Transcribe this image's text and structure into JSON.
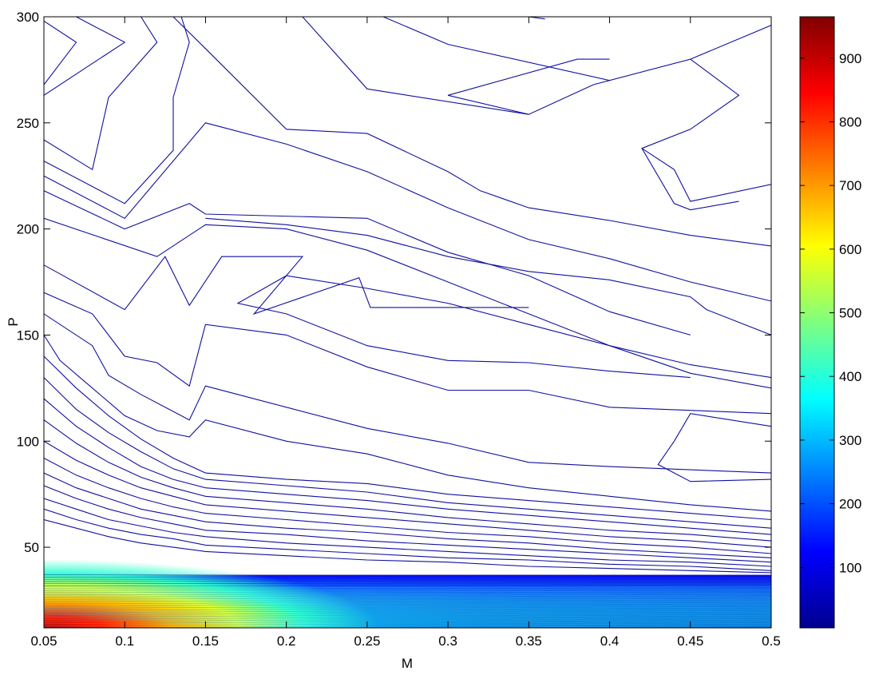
{
  "chart_data": {
    "type": "contour",
    "xlabel": "M",
    "ylabel": "P",
    "xlim": [
      0.05,
      0.5
    ],
    "ylim": [
      12,
      300
    ],
    "xticks": [
      "0.05",
      "0.1",
      "0.15",
      "0.2",
      "0.25",
      "0.3",
      "0.35",
      "0.4",
      "0.45",
      "0.5"
    ],
    "yticks": [
      "50",
      "100",
      "150",
      "200",
      "250",
      "300"
    ],
    "colorbar": {
      "colormap": "jet",
      "range": [
        5,
        965
      ],
      "ticks": [
        "100",
        "200",
        "300",
        "400",
        "500",
        "600",
        "700",
        "800",
        "900"
      ]
    },
    "contour_lines": [
      {
        "points": [
          [
            0.05,
            268
          ],
          [
            0.07,
            288
          ],
          [
            0.05,
            298
          ]
        ]
      },
      {
        "points": [
          [
            0.05,
            263
          ],
          [
            0.1,
            288
          ],
          [
            0.07,
            300
          ]
        ]
      },
      {
        "points": [
          [
            0.05,
            242
          ],
          [
            0.08,
            228
          ],
          [
            0.09,
            262
          ],
          [
            0.12,
            288
          ],
          [
            0.11,
            300
          ]
        ]
      },
      {
        "points": [
          [
            0.05,
            232
          ],
          [
            0.1,
            212
          ],
          [
            0.13,
            237
          ],
          [
            0.13,
            262
          ],
          [
            0.14,
            288
          ],
          [
            0.135,
            300
          ]
        ]
      },
      {
        "points": [
          [
            0.05,
            225
          ],
          [
            0.1,
            205
          ],
          [
            0.15,
            250
          ],
          [
            0.2,
            240
          ],
          [
            0.25,
            227
          ],
          [
            0.3,
            210
          ],
          [
            0.35,
            195
          ],
          [
            0.4,
            186
          ],
          [
            0.45,
            175
          ],
          [
            0.5,
            166
          ]
        ]
      },
      {
        "points": [
          [
            0.05,
            218
          ],
          [
            0.1,
            200
          ],
          [
            0.14,
            212
          ],
          [
            0.15,
            207
          ],
          [
            0.25,
            205
          ],
          [
            0.3,
            189
          ],
          [
            0.35,
            178
          ],
          [
            0.4,
            161
          ],
          [
            0.45,
            150
          ]
        ]
      },
      {
        "points": [
          [
            0.05,
            205
          ],
          [
            0.12,
            187
          ],
          [
            0.15,
            202
          ],
          [
            0.2,
            200
          ],
          [
            0.25,
            190
          ],
          [
            0.3,
            175
          ],
          [
            0.35,
            160
          ],
          [
            0.4,
            145
          ],
          [
            0.45,
            132
          ],
          [
            0.5,
            125
          ]
        ]
      },
      {
        "points": [
          [
            0.05,
            183
          ],
          [
            0.1,
            162
          ],
          [
            0.125,
            187
          ],
          [
            0.14,
            164
          ],
          [
            0.16,
            187
          ],
          [
            0.21,
            187
          ],
          [
            0.18,
            160
          ],
          [
            0.245,
            177
          ],
          [
            0.252,
            163
          ],
          [
            0.35,
            163
          ]
        ]
      },
      {
        "points": [
          [
            0.05,
            170
          ],
          [
            0.08,
            160
          ],
          [
            0.1,
            140
          ],
          [
            0.12,
            137
          ],
          [
            0.14,
            126
          ],
          [
            0.15,
            155
          ],
          [
            0.2,
            150
          ],
          [
            0.25,
            135
          ],
          [
            0.3,
            124
          ],
          [
            0.35,
            124
          ],
          [
            0.4,
            116
          ],
          [
            0.5,
            113
          ]
        ]
      },
      {
        "points": [
          [
            0.05,
            160
          ],
          [
            0.08,
            145
          ],
          [
            0.09,
            131
          ],
          [
            0.11,
            122
          ],
          [
            0.14,
            110
          ],
          [
            0.15,
            126
          ],
          [
            0.2,
            116
          ],
          [
            0.25,
            106
          ],
          [
            0.3,
            99
          ],
          [
            0.35,
            90
          ],
          [
            0.4,
            88
          ],
          [
            0.5,
            85
          ]
        ]
      },
      {
        "points": [
          [
            0.05,
            150
          ],
          [
            0.06,
            138
          ],
          [
            0.08,
            125
          ],
          [
            0.1,
            112
          ],
          [
            0.12,
            105
          ],
          [
            0.14,
            102
          ],
          [
            0.15,
            110
          ],
          [
            0.2,
            100
          ],
          [
            0.25,
            94
          ],
          [
            0.3,
            84
          ],
          [
            0.35,
            78
          ],
          [
            0.4,
            74
          ],
          [
            0.45,
            70
          ],
          [
            0.5,
            67
          ]
        ]
      },
      {
        "points": [
          [
            0.05,
            140
          ],
          [
            0.07,
            125
          ],
          [
            0.09,
            112
          ],
          [
            0.11,
            101
          ],
          [
            0.13,
            92
          ],
          [
            0.15,
            85
          ],
          [
            0.2,
            82
          ],
          [
            0.25,
            80
          ],
          [
            0.3,
            75
          ],
          [
            0.35,
            72
          ],
          [
            0.4,
            69
          ],
          [
            0.45,
            66
          ],
          [
            0.5,
            63
          ]
        ]
      },
      {
        "points": [
          [
            0.05,
            130
          ],
          [
            0.07,
            115
          ],
          [
            0.09,
            104
          ],
          [
            0.11,
            95
          ],
          [
            0.13,
            87
          ],
          [
            0.15,
            82
          ],
          [
            0.2,
            79
          ],
          [
            0.25,
            76
          ],
          [
            0.3,
            71
          ],
          [
            0.35,
            68
          ],
          [
            0.4,
            65
          ],
          [
            0.45,
            62
          ],
          [
            0.5,
            59
          ]
        ]
      },
      {
        "points": [
          [
            0.05,
            120
          ],
          [
            0.07,
            107
          ],
          [
            0.09,
            97
          ],
          [
            0.11,
            88
          ],
          [
            0.13,
            82
          ],
          [
            0.15,
            78
          ],
          [
            0.2,
            75
          ],
          [
            0.25,
            72
          ],
          [
            0.3,
            68
          ],
          [
            0.35,
            65
          ],
          [
            0.4,
            62
          ],
          [
            0.45,
            59
          ],
          [
            0.5,
            56
          ]
        ]
      },
      {
        "points": [
          [
            0.05,
            110
          ],
          [
            0.07,
            99
          ],
          [
            0.09,
            90
          ],
          [
            0.11,
            83
          ],
          [
            0.13,
            78
          ],
          [
            0.15,
            74
          ],
          [
            0.2,
            71
          ],
          [
            0.25,
            68
          ],
          [
            0.3,
            64
          ],
          [
            0.35,
            61
          ],
          [
            0.4,
            58
          ],
          [
            0.45,
            56
          ],
          [
            0.5,
            53
          ]
        ]
      },
      {
        "points": [
          [
            0.05,
            100
          ],
          [
            0.07,
            91
          ],
          [
            0.09,
            84
          ],
          [
            0.11,
            78
          ],
          [
            0.13,
            74
          ],
          [
            0.15,
            70
          ],
          [
            0.2,
            67
          ],
          [
            0.25,
            64
          ],
          [
            0.3,
            61
          ],
          [
            0.35,
            58
          ],
          [
            0.4,
            55
          ],
          [
            0.45,
            53
          ],
          [
            0.5,
            50
          ]
        ]
      },
      {
        "points": [
          [
            0.05,
            92
          ],
          [
            0.07,
            84
          ],
          [
            0.09,
            78
          ],
          [
            0.11,
            73
          ],
          [
            0.13,
            69
          ],
          [
            0.15,
            66
          ],
          [
            0.2,
            63
          ],
          [
            0.25,
            60
          ],
          [
            0.3,
            57
          ],
          [
            0.35,
            55
          ],
          [
            0.4,
            52
          ],
          [
            0.45,
            50
          ],
          [
            0.5,
            47
          ]
        ]
      },
      {
        "points": [
          [
            0.05,
            85
          ],
          [
            0.07,
            78
          ],
          [
            0.09,
            73
          ],
          [
            0.11,
            68
          ],
          [
            0.13,
            65
          ],
          [
            0.15,
            62
          ],
          [
            0.2,
            59
          ],
          [
            0.25,
            57
          ],
          [
            0.3,
            54
          ],
          [
            0.35,
            52
          ],
          [
            0.4,
            49
          ],
          [
            0.45,
            47
          ],
          [
            0.5,
            45
          ]
        ]
      },
      {
        "points": [
          [
            0.05,
            79
          ],
          [
            0.07,
            73
          ],
          [
            0.09,
            68
          ],
          [
            0.11,
            64
          ],
          [
            0.13,
            61
          ],
          [
            0.15,
            58
          ],
          [
            0.2,
            56
          ],
          [
            0.25,
            53
          ],
          [
            0.3,
            51
          ],
          [
            0.35,
            49
          ],
          [
            0.4,
            47
          ],
          [
            0.45,
            45
          ],
          [
            0.5,
            43
          ]
        ]
      },
      {
        "points": [
          [
            0.05,
            73
          ],
          [
            0.07,
            68
          ],
          [
            0.09,
            63
          ],
          [
            0.11,
            60
          ],
          [
            0.13,
            57
          ],
          [
            0.15,
            55
          ],
          [
            0.2,
            52
          ],
          [
            0.25,
            50
          ],
          [
            0.3,
            48
          ],
          [
            0.35,
            46
          ],
          [
            0.4,
            44
          ],
          [
            0.45,
            43
          ],
          [
            0.5,
            41
          ]
        ]
      },
      {
        "points": [
          [
            0.05,
            68
          ],
          [
            0.07,
            63
          ],
          [
            0.09,
            59
          ],
          [
            0.11,
            56
          ],
          [
            0.13,
            54
          ],
          [
            0.15,
            51
          ],
          [
            0.2,
            49
          ],
          [
            0.25,
            47
          ],
          [
            0.3,
            45
          ],
          [
            0.35,
            44
          ],
          [
            0.4,
            42
          ],
          [
            0.45,
            41
          ],
          [
            0.5,
            39
          ]
        ]
      },
      {
        "points": [
          [
            0.05,
            63
          ],
          [
            0.07,
            59
          ],
          [
            0.09,
            55
          ],
          [
            0.11,
            52
          ],
          [
            0.13,
            50
          ],
          [
            0.15,
            48
          ],
          [
            0.2,
            46
          ],
          [
            0.25,
            44
          ],
          [
            0.3,
            43
          ],
          [
            0.35,
            41
          ],
          [
            0.4,
            40
          ],
          [
            0.45,
            39
          ],
          [
            0.5,
            38
          ]
        ]
      },
      {
        "points": [
          [
            0.4,
            280
          ],
          [
            0.38,
            280
          ],
          [
            0.3,
            263
          ],
          [
            0.35,
            254
          ],
          [
            0.39,
            268
          ],
          [
            0.45,
            280
          ],
          [
            0.48,
            263
          ],
          [
            0.45,
            247
          ],
          [
            0.42,
            238
          ],
          [
            0.44,
            212
          ],
          [
            0.45,
            209
          ],
          [
            0.48,
            213
          ]
        ]
      },
      {
        "points": [
          [
            0.21,
            300
          ],
          [
            0.25,
            266
          ],
          [
            0.35,
            254
          ]
        ]
      },
      {
        "points": [
          [
            0.26,
            300
          ],
          [
            0.3,
            287
          ],
          [
            0.4,
            270
          ]
        ]
      },
      {
        "points": [
          [
            0.35,
            300
          ],
          [
            0.36,
            299
          ]
        ]
      },
      {
        "points": [
          [
            0.42,
            238
          ],
          [
            0.44,
            228
          ],
          [
            0.45,
            213
          ],
          [
            0.5,
            221
          ]
        ]
      },
      {
        "points": [
          [
            0.45,
            280
          ],
          [
            0.5,
            296
          ]
        ]
      },
      {
        "points": [
          [
            0.5,
            192
          ],
          [
            0.45,
            197
          ],
          [
            0.4,
            204
          ],
          [
            0.35,
            210
          ],
          [
            0.32,
            218
          ],
          [
            0.3,
            227
          ],
          [
            0.25,
            245
          ],
          [
            0.2,
            247
          ],
          [
            0.15,
            285
          ],
          [
            0.13,
            300
          ]
        ]
      },
      {
        "points": [
          [
            0.5,
            150
          ],
          [
            0.46,
            162
          ],
          [
            0.45,
            168
          ],
          [
            0.4,
            176
          ],
          [
            0.35,
            180
          ],
          [
            0.3,
            187
          ],
          [
            0.25,
            197
          ],
          [
            0.2,
            202
          ],
          [
            0.15,
            205
          ]
        ]
      },
      {
        "points": [
          [
            0.5,
            130
          ],
          [
            0.45,
            136
          ],
          [
            0.4,
            145
          ],
          [
            0.35,
            155
          ],
          [
            0.3,
            165
          ],
          [
            0.25,
            172
          ],
          [
            0.2,
            178
          ],
          [
            0.17,
            165
          ],
          [
            0.2,
            160
          ],
          [
            0.25,
            145
          ],
          [
            0.3,
            138
          ],
          [
            0.35,
            137
          ],
          [
            0.4,
            133
          ],
          [
            0.45,
            130
          ]
        ]
      },
      {
        "points": [
          [
            0.5,
            107
          ],
          [
            0.45,
            113
          ],
          [
            0.44,
            100
          ],
          [
            0.43,
            89
          ],
          [
            0.45,
            81
          ],
          [
            0.5,
            82
          ]
        ]
      }
    ]
  }
}
